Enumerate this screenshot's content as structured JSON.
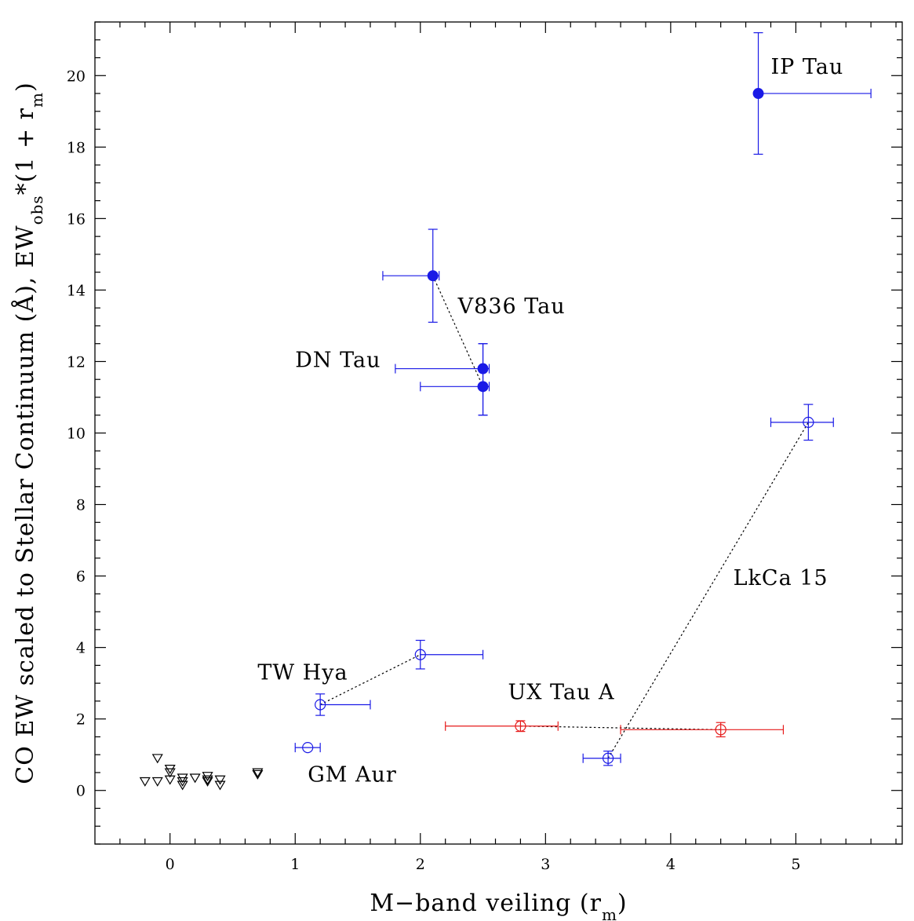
{
  "chart_data": {
    "type": "scatter",
    "xlabel": "M−band veiling (r",
    "xlabel_sub": "m",
    "xlabel_end": ")",
    "ylabel_main": "CO EW scaled to Stellar Continuum (Å), EW",
    "ylabel_sub1": "obs",
    "ylabel_mid": "*(1 + r",
    "ylabel_sub2": "m",
    "ylabel_end": ")",
    "xlim": [
      -0.6,
      5.85
    ],
    "ylim": [
      -1.5,
      21.5
    ],
    "x_ticks": [
      0,
      1,
      2,
      3,
      4,
      5
    ],
    "y_ticks": [
      0,
      2,
      4,
      6,
      8,
      10,
      12,
      14,
      16,
      18,
      20
    ],
    "x_minor_step": 0.2,
    "y_minor_step": 0.5,
    "colors": {
      "blue": "#1a1ae6",
      "red": "#e61a1a",
      "black": "#000000"
    },
    "series": [
      {
        "marker": "filled-circle",
        "color": "#1a1ae6",
        "points": [
          {
            "x": 4.7,
            "y": 19.5,
            "xerr": [
              0.0,
              0.9
            ],
            "yerr": [
              1.7,
              1.7
            ]
          },
          {
            "x": 2.1,
            "y": 14.4,
            "xerr": [
              0.4,
              0.05
            ],
            "yerr": [
              1.3,
              1.3
            ]
          },
          {
            "x": 2.5,
            "y": 11.8,
            "xerr": [
              0.7,
              0.05
            ],
            "yerr": [
              1.3,
              0.7
            ]
          },
          {
            "x": 2.5,
            "y": 11.3,
            "xerr": [
              0.5,
              0.05
            ],
            "yerr": [
              0.8,
              1.2
            ]
          }
        ]
      },
      {
        "marker": "open-circle",
        "color": "#1a1ae6",
        "points": [
          {
            "x": 5.1,
            "y": 10.3,
            "xerr": [
              0.3,
              0.2
            ],
            "yerr": [
              0.5,
              0.5
            ]
          },
          {
            "x": 2.0,
            "y": 3.8,
            "xerr": [
              0.0,
              0.5
            ],
            "yerr": [
              0.4,
              0.4
            ]
          },
          {
            "x": 1.2,
            "y": 2.4,
            "xerr": [
              0.0,
              0.4
            ],
            "yerr": [
              0.3,
              0.3
            ]
          },
          {
            "x": 1.1,
            "y": 1.2,
            "xerr": [
              0.1,
              0.1
            ],
            "yerr": [
              0.0,
              0.0
            ]
          },
          {
            "x": 3.5,
            "y": 0.9,
            "xerr": [
              0.2,
              0.1
            ],
            "yerr": [
              0.2,
              0.2
            ]
          }
        ]
      },
      {
        "marker": "open-circle",
        "color": "#e61a1a",
        "points": [
          {
            "x": 2.8,
            "y": 1.8,
            "xerr": [
              0.6,
              0.3
            ],
            "yerr": [
              0.15,
              0.15
            ]
          },
          {
            "x": 4.4,
            "y": 1.7,
            "xerr": [
              0.8,
              0.5
            ],
            "yerr": [
              0.2,
              0.2
            ]
          }
        ]
      },
      {
        "marker": "open-triangle-down",
        "color": "#000000",
        "points": [
          {
            "x": -0.2,
            "y": 0.25
          },
          {
            "x": -0.1,
            "y": 0.25
          },
          {
            "x": -0.1,
            "y": 0.9
          },
          {
            "x": 0.0,
            "y": 0.6
          },
          {
            "x": 0.0,
            "y": 0.5
          },
          {
            "x": 0.0,
            "y": 0.3
          },
          {
            "x": 0.1,
            "y": 0.35
          },
          {
            "x": 0.1,
            "y": 0.25
          },
          {
            "x": 0.1,
            "y": 0.15
          },
          {
            "x": 0.2,
            "y": 0.35
          },
          {
            "x": 0.3,
            "y": 0.4
          },
          {
            "x": 0.3,
            "y": 0.3
          },
          {
            "x": 0.3,
            "y": 0.25
          },
          {
            "x": 0.4,
            "y": 0.3
          },
          {
            "x": 0.4,
            "y": 0.15
          },
          {
            "x": 0.7,
            "y": 0.5
          },
          {
            "x": 0.7,
            "y": 0.45
          }
        ]
      }
    ],
    "connectors": [
      [
        [
          2.1,
          14.4
        ],
        [
          2.5,
          11.3
        ]
      ],
      [
        [
          1.2,
          2.4
        ],
        [
          2.0,
          3.8
        ]
      ],
      [
        [
          3.5,
          0.9
        ],
        [
          5.1,
          10.3
        ]
      ],
      [
        [
          2.8,
          1.8
        ],
        [
          4.4,
          1.7
        ]
      ]
    ],
    "annotations": [
      {
        "text": "IP Tau",
        "x": 4.8,
        "y": 20.05
      },
      {
        "text": "V836 Tau",
        "x": 2.3,
        "y": 13.35
      },
      {
        "text": "DN Tau",
        "x": 1.0,
        "y": 11.85
      },
      {
        "text": "LkCa 15",
        "x": 4.5,
        "y": 5.75
      },
      {
        "text": "TW Hya",
        "x": 0.7,
        "y": 3.1
      },
      {
        "text": "UX Tau A",
        "x": 2.7,
        "y": 2.55
      },
      {
        "text": "GM Aur",
        "x": 1.1,
        "y": 0.25
      }
    ]
  }
}
